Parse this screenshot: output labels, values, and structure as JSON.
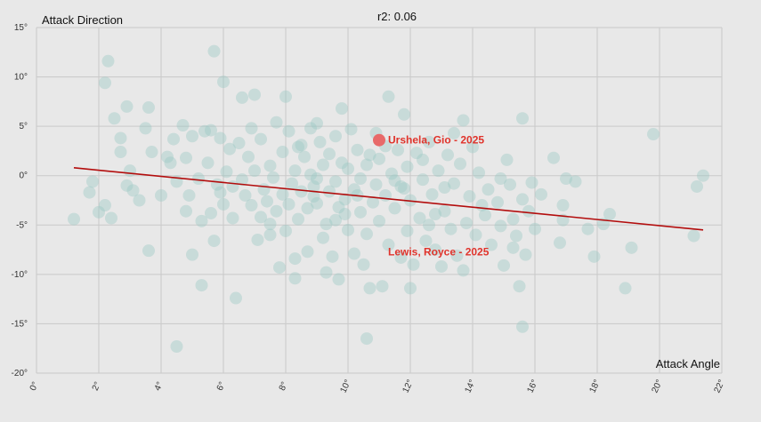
{
  "chart_data": {
    "type": "scatter",
    "title": "r2: 0.06",
    "xlabel": "Attack Angle",
    "ylabel": "Attack Direction",
    "xlim": [
      0,
      22
    ],
    "ylim": [
      -20,
      15
    ],
    "x_ticks": [
      "0°",
      "2°",
      "4°",
      "6°",
      "8°",
      "10°",
      "12°",
      "14°",
      "16°",
      "18°",
      "20°",
      "22°"
    ],
    "y_ticks": [
      "15°",
      "10°",
      "5°",
      "0°",
      "-5°",
      "-10°",
      "-15°",
      "-20°"
    ],
    "grid": true,
    "point_color": "#9cc7c4",
    "trend_color": "#b30d0d",
    "highlight_color": "#e86a6a",
    "label_color": "#e0332b",
    "trendline": {
      "x": [
        1.2,
        21.4
      ],
      "y": [
        0.8,
        -5.5
      ]
    },
    "highlighted_points": [
      {
        "label": "Urshela, Gio - 2025",
        "x": 11.0,
        "y": 3.6
      },
      {
        "label": "Lewis, Royce - 2025",
        "x": 11.0,
        "y": -7.7
      }
    ],
    "points": [
      [
        1.2,
        -4.4
      ],
      [
        1.7,
        -1.7
      ],
      [
        1.8,
        -0.6
      ],
      [
        2.2,
        9.4
      ],
      [
        2.3,
        11.6
      ],
      [
        2.2,
        -3.0
      ],
      [
        2.4,
        -4.3
      ],
      [
        2.5,
        5.8
      ],
      [
        2.7,
        3.8
      ],
      [
        2.7,
        2.4
      ],
      [
        2.9,
        7.0
      ],
      [
        2.9,
        -1.0
      ],
      [
        3.0,
        0.5
      ],
      [
        3.3,
        -2.5
      ],
      [
        3.5,
        4.8
      ],
      [
        3.6,
        6.9
      ],
      [
        3.6,
        -7.6
      ],
      [
        3.7,
        2.4
      ],
      [
        4.0,
        -2.0
      ],
      [
        4.2,
        1.9
      ],
      [
        4.3,
        1.3
      ],
      [
        4.4,
        3.7
      ],
      [
        4.5,
        -0.6
      ],
      [
        4.5,
        -17.3
      ],
      [
        4.7,
        5.1
      ],
      [
        4.8,
        1.8
      ],
      [
        4.9,
        -2.0
      ],
      [
        5.0,
        4.0
      ],
      [
        5.2,
        -0.3
      ],
      [
        5.3,
        -11.1
      ],
      [
        5.3,
        -4.6
      ],
      [
        5.4,
        4.5
      ],
      [
        5.5,
        1.3
      ],
      [
        5.6,
        -3.8
      ],
      [
        5.6,
        4.6
      ],
      [
        5.7,
        12.6
      ],
      [
        5.7,
        -6.6
      ],
      [
        5.8,
        -0.9
      ],
      [
        5.9,
        -1.7
      ],
      [
        5.9,
        3.8
      ],
      [
        6.0,
        9.5
      ],
      [
        6.0,
        -2.9
      ],
      [
        6.1,
        0.4
      ],
      [
        6.2,
        2.7
      ],
      [
        6.3,
        -4.3
      ],
      [
        6.4,
        -12.4
      ],
      [
        6.5,
        3.3
      ],
      [
        6.6,
        7.9
      ],
      [
        6.6,
        -0.4
      ],
      [
        6.7,
        -2.0
      ],
      [
        6.8,
        1.9
      ],
      [
        6.9,
        -3.0
      ],
      [
        7.0,
        8.2
      ],
      [
        7.0,
        0.5
      ],
      [
        7.1,
        -6.5
      ],
      [
        7.2,
        3.7
      ],
      [
        7.3,
        -1.4
      ],
      [
        7.4,
        -2.6
      ],
      [
        7.5,
        1.0
      ],
      [
        7.5,
        -4.9
      ],
      [
        7.6,
        -0.2
      ],
      [
        7.7,
        5.4
      ],
      [
        7.7,
        -3.6
      ],
      [
        7.8,
        -9.3
      ],
      [
        7.9,
        2.4
      ],
      [
        7.9,
        -1.9
      ],
      [
        8.0,
        8.0
      ],
      [
        8.1,
        -2.9
      ],
      [
        8.1,
        4.5
      ],
      [
        8.2,
        -0.8
      ],
      [
        8.3,
        -10.4
      ],
      [
        8.3,
        0.5
      ],
      [
        8.4,
        -4.4
      ],
      [
        8.4,
        2.9
      ],
      [
        8.5,
        -1.6
      ],
      [
        8.6,
        1.9
      ],
      [
        8.7,
        -7.7
      ],
      [
        8.7,
        -3.3
      ],
      [
        8.8,
        4.8
      ],
      [
        8.8,
        0.1
      ],
      [
        8.9,
        -1.1
      ],
      [
        9.0,
        -2.8
      ],
      [
        9.0,
        -0.3
      ],
      [
        9.1,
        3.4
      ],
      [
        9.2,
        -6.3
      ],
      [
        9.2,
        1.1
      ],
      [
        9.3,
        -4.9
      ],
      [
        9.4,
        -1.6
      ],
      [
        9.4,
        2.2
      ],
      [
        9.5,
        -8.2
      ],
      [
        9.6,
        -0.6
      ],
      [
        9.6,
        4.0
      ],
      [
        9.7,
        -10.5
      ],
      [
        9.7,
        -3.2
      ],
      [
        9.8,
        6.8
      ],
      [
        9.8,
        1.3
      ],
      [
        9.9,
        -2.4
      ],
      [
        10.0,
        -5.5
      ],
      [
        10.0,
        0.7
      ],
      [
        10.1,
        4.7
      ],
      [
        10.2,
        -1.4
      ],
      [
        10.2,
        -7.9
      ],
      [
        10.3,
        2.6
      ],
      [
        10.4,
        -3.7
      ],
      [
        10.4,
        -0.3
      ],
      [
        10.5,
        -9.0
      ],
      [
        10.6,
        1.1
      ],
      [
        10.6,
        -5.9
      ],
      [
        10.7,
        -11.4
      ],
      [
        10.8,
        -2.7
      ],
      [
        10.9,
        4.3
      ],
      [
        10.9,
        -0.9
      ],
      [
        11.0,
        -4.6
      ],
      [
        11.0,
        1.7
      ],
      [
        11.1,
        -11.2
      ],
      [
        11.2,
        -2.0
      ],
      [
        11.3,
        8.0
      ],
      [
        11.3,
        -7.0
      ],
      [
        11.4,
        0.2
      ],
      [
        11.5,
        -3.3
      ],
      [
        11.6,
        2.6
      ],
      [
        11.7,
        -8.3
      ],
      [
        11.7,
        -1.1
      ],
      [
        11.8,
        6.2
      ],
      [
        11.9,
        -5.6
      ],
      [
        11.9,
        0.9
      ],
      [
        12.0,
        -2.5
      ],
      [
        12.1,
        -9.0
      ],
      [
        12.2,
        2.3
      ],
      [
        12.3,
        -4.3
      ],
      [
        12.4,
        -0.4
      ],
      [
        12.5,
        -6.6
      ],
      [
        12.6,
        3.4
      ],
      [
        12.7,
        -1.9
      ],
      [
        12.8,
        -7.5
      ],
      [
        12.9,
        0.5
      ],
      [
        13.0,
        -9.2
      ],
      [
        13.1,
        -3.6
      ],
      [
        13.2,
        2.1
      ],
      [
        13.3,
        -5.4
      ],
      [
        13.4,
        -0.8
      ],
      [
        13.5,
        -8.1
      ],
      [
        13.6,
        1.2
      ],
      [
        13.7,
        5.6
      ],
      [
        13.8,
        -4.8
      ],
      [
        13.9,
        -2.1
      ],
      [
        14.0,
        2.9
      ],
      [
        14.1,
        -6.0
      ],
      [
        14.2,
        0.3
      ],
      [
        14.3,
        -3.0
      ],
      [
        14.5,
        -1.4
      ],
      [
        14.6,
        -7.0
      ],
      [
        14.8,
        -2.7
      ],
      [
        14.9,
        -5.1
      ],
      [
        15.0,
        -9.1
      ],
      [
        15.1,
        1.6
      ],
      [
        15.2,
        -0.9
      ],
      [
        15.3,
        -4.4
      ],
      [
        15.4,
        -6.1
      ],
      [
        15.5,
        -11.2
      ],
      [
        15.6,
        5.8
      ],
      [
        15.6,
        -15.3
      ],
      [
        15.6,
        -2.4
      ],
      [
        15.7,
        -8.0
      ],
      [
        15.8,
        -3.6
      ],
      [
        15.9,
        -0.7
      ],
      [
        16.0,
        -5.4
      ],
      [
        16.2,
        -1.9
      ],
      [
        16.6,
        1.8
      ],
      [
        16.8,
        -6.8
      ],
      [
        16.9,
        -3.0
      ],
      [
        17.0,
        -0.3
      ],
      [
        17.3,
        -0.6
      ],
      [
        17.7,
        -5.4
      ],
      [
        17.9,
        -8.2
      ],
      [
        18.2,
        -4.9
      ],
      [
        18.4,
        -3.9
      ],
      [
        18.9,
        -11.4
      ],
      [
        19.1,
        -7.3
      ],
      [
        19.8,
        4.2
      ],
      [
        21.1,
        -6.1
      ],
      [
        21.2,
        -1.1
      ],
      [
        21.4,
        0.0
      ],
      [
        13.4,
        4.3
      ],
      [
        9.0,
        5.3
      ],
      [
        8.5,
        3.1
      ],
      [
        7.2,
        -4.2
      ],
      [
        6.3,
        -1.1
      ],
      [
        10.3,
        -2.0
      ],
      [
        11.5,
        -0.5
      ],
      [
        12.8,
        -3.9
      ],
      [
        9.6,
        -4.5
      ],
      [
        8.0,
        -5.6
      ],
      [
        7.5,
        -6.0
      ],
      [
        10.7,
        2.1
      ],
      [
        11.2,
        3.0
      ],
      [
        12.4,
        1.6
      ],
      [
        13.1,
        -1.2
      ],
      [
        14.4,
        -4.0
      ],
      [
        15.3,
        -7.3
      ],
      [
        6.9,
        4.8
      ],
      [
        8.3,
        -8.4
      ],
      [
        9.3,
        -9.8
      ],
      [
        12.0,
        -11.4
      ],
      [
        16.9,
        -4.5
      ],
      [
        14.9,
        -0.3
      ],
      [
        5.0,
        -8.0
      ],
      [
        4.8,
        -3.6
      ],
      [
        10.6,
        -16.5
      ],
      [
        3.1,
        -1.5
      ],
      [
        2.0,
        -3.7
      ],
      [
        13.7,
        -9.6
      ],
      [
        12.6,
        -5.0
      ],
      [
        11.8,
        -1.3
      ],
      [
        8.9,
        -2.1
      ],
      [
        9.9,
        -3.9
      ]
    ]
  }
}
